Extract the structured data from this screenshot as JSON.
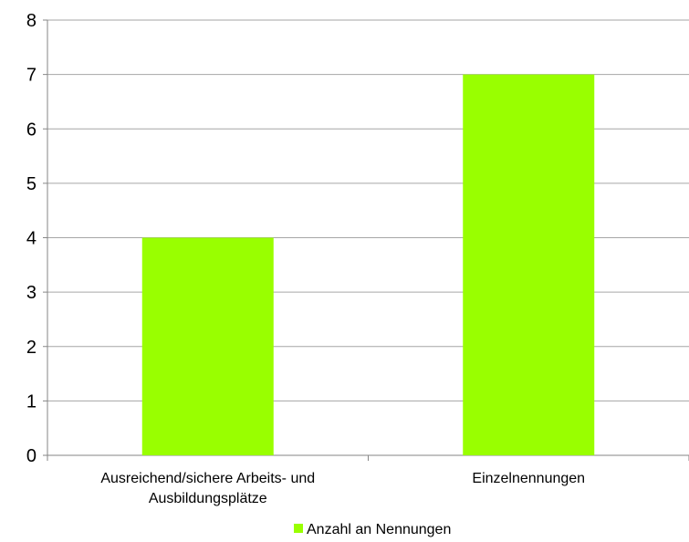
{
  "chart_data": {
    "type": "bar",
    "categories": [
      [
        "Ausreichend/sichere Arbeits- und",
        "Ausbildungsplätze"
      ],
      [
        "Einzelnennungen"
      ]
    ],
    "series": [
      {
        "name": "Anzahl an Nennungen",
        "values": [
          4,
          7
        ],
        "color": "#99ff00"
      }
    ],
    "ylim": [
      0,
      8
    ],
    "yticks": [
      0,
      1,
      2,
      3,
      4,
      5,
      6,
      7,
      8
    ],
    "grid": true,
    "legend_position": "bottom",
    "gridline_color": "#a6a6a6",
    "axis_color": "#868686"
  }
}
